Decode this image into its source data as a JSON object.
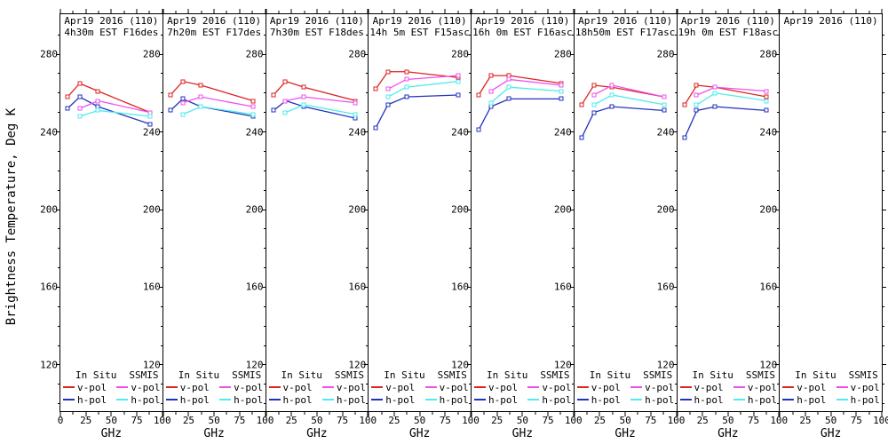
{
  "figure": {
    "ylabel": "Brightness Temperature, Deg K",
    "xlabel": "GHz",
    "background": "#ffffff"
  },
  "axes": {
    "x_ticks": [
      0,
      25,
      50,
      75,
      100
    ],
    "x_minor_ticks": [
      12.5,
      37.5,
      62.5,
      87.5
    ],
    "y_ticks": [
      280,
      240,
      200,
      160,
      120
    ],
    "y_minor_step": 10,
    "x_range": [
      0,
      100
    ],
    "y_range": [
      96.2,
      300.6
    ],
    "grid": false
  },
  "legend": {
    "in_situ_label": "In Situ",
    "ssmis_label": "SSMIS",
    "v_pol_label": "v-pol",
    "h_pol_label": "h-pol",
    "position": "bottom-inside-each-panel"
  },
  "colors": {
    "in_situ_v_pol": "#dd2222",
    "in_situ_h_pol": "#2233bb",
    "ssmis_v_pol": "#ee50ee",
    "ssmis_h_pol": "#50ebeb",
    "axis": "#000000"
  },
  "chart_data": [
    {
      "type": "line",
      "title": "Apr19 2016 (110)",
      "subtitle": "4h30m EST F16des",
      "series": [
        {
          "name": "In Situ v-pol",
          "color": "in_situ_v_pol",
          "x": [
            7,
            19,
            37,
            88
          ],
          "y": [
            258,
            265,
            261,
            250
          ]
        },
        {
          "name": "In Situ h-pol",
          "color": "in_situ_h_pol",
          "x": [
            7,
            19,
            37,
            88
          ],
          "y": [
            252,
            258,
            253,
            244
          ]
        },
        {
          "name": "SSMIS v-pol",
          "color": "ssmis_v_pol",
          "x": [
            19,
            37,
            88
          ],
          "y": [
            252,
            256,
            250
          ]
        },
        {
          "name": "SSMIS h-pol",
          "color": "ssmis_h_pol",
          "x": [
            19,
            37,
            88
          ],
          "y": [
            248,
            251,
            248
          ]
        }
      ]
    },
    {
      "type": "line",
      "title": "Apr19 2016 (110)",
      "subtitle": "7h20m EST F17des",
      "series": [
        {
          "name": "In Situ v-pol",
          "color": "in_situ_v_pol",
          "x": [
            7,
            19,
            37,
            88
          ],
          "y": [
            259,
            266,
            264,
            256
          ]
        },
        {
          "name": "In Situ h-pol",
          "color": "in_situ_h_pol",
          "x": [
            7,
            19,
            37,
            88
          ],
          "y": [
            251,
            257,
            253,
            248
          ]
        },
        {
          "name": "SSMIS v-pol",
          "color": "ssmis_v_pol",
          "x": [
            19,
            37,
            88
          ],
          "y": [
            255,
            258,
            253
          ]
        },
        {
          "name": "SSMIS h-pol",
          "color": "ssmis_h_pol",
          "x": [
            19,
            37,
            88
          ],
          "y": [
            249,
            253,
            249
          ]
        }
      ]
    },
    {
      "type": "line",
      "title": "Apr19 2016 (110)",
      "subtitle": "7h30m EST F18des",
      "series": [
        {
          "name": "In Situ v-pol",
          "color": "in_situ_v_pol",
          "x": [
            7,
            19,
            37,
            88
          ],
          "y": [
            259,
            266,
            263,
            256
          ]
        },
        {
          "name": "In Situ h-pol",
          "color": "in_situ_h_pol",
          "x": [
            7,
            19,
            37,
            88
          ],
          "y": [
            251,
            256,
            253,
            247
          ]
        },
        {
          "name": "SSMIS v-pol",
          "color": "ssmis_v_pol",
          "x": [
            19,
            37,
            88
          ],
          "y": [
            256,
            258,
            255
          ]
        },
        {
          "name": "SSMIS h-pol",
          "color": "ssmis_h_pol",
          "x": [
            19,
            37,
            88
          ],
          "y": [
            250,
            254,
            249
          ]
        }
      ]
    },
    {
      "type": "line",
      "title": "Apr19 2016 (110)",
      "subtitle": "14h 5m EST F15asc",
      "series": [
        {
          "name": "In Situ v-pol",
          "color": "in_situ_v_pol",
          "x": [
            7,
            19,
            37,
            88
          ],
          "y": [
            262,
            271,
            271,
            268
          ]
        },
        {
          "name": "In Situ h-pol",
          "color": "in_situ_h_pol",
          "x": [
            7,
            19,
            37,
            88
          ],
          "y": [
            242,
            254,
            258,
            259
          ]
        },
        {
          "name": "SSMIS v-pol",
          "color": "ssmis_v_pol",
          "x": [
            19,
            37,
            88
          ],
          "y": [
            262,
            267,
            269
          ]
        },
        {
          "name": "SSMIS h-pol",
          "color": "ssmis_h_pol",
          "x": [
            19,
            37,
            88
          ],
          "y": [
            258,
            263,
            266
          ]
        }
      ]
    },
    {
      "type": "line",
      "title": "Apr19 2016 (110)",
      "subtitle": "16h 0m EST F16asc",
      "series": [
        {
          "name": "In Situ v-pol",
          "color": "in_situ_v_pol",
          "x": [
            7,
            19,
            37,
            88
          ],
          "y": [
            259,
            269,
            269,
            265
          ]
        },
        {
          "name": "In Situ h-pol",
          "color": "in_situ_h_pol",
          "x": [
            7,
            19,
            37,
            88
          ],
          "y": [
            241,
            253,
            257,
            257
          ]
        },
        {
          "name": "SSMIS v-pol",
          "color": "ssmis_v_pol",
          "x": [
            19,
            37,
            88
          ],
          "y": [
            261,
            267,
            264
          ]
        },
        {
          "name": "SSMIS h-pol",
          "color": "ssmis_h_pol",
          "x": [
            19,
            37,
            88
          ],
          "y": [
            255,
            263,
            261
          ]
        }
      ]
    },
    {
      "type": "line",
      "title": "Apr19 2016 (110)",
      "subtitle": "18h50m EST F17asc",
      "series": [
        {
          "name": "In Situ v-pol",
          "color": "in_situ_v_pol",
          "x": [
            7,
            19,
            37,
            88
          ],
          "y": [
            254,
            264,
            263,
            258
          ]
        },
        {
          "name": "In Situ h-pol",
          "color": "in_situ_h_pol",
          "x": [
            7,
            19,
            37,
            88
          ],
          "y": [
            237,
            250,
            253,
            251
          ]
        },
        {
          "name": "SSMIS v-pol",
          "color": "ssmis_v_pol",
          "x": [
            19,
            37,
            88
          ],
          "y": [
            259,
            264,
            258
          ]
        },
        {
          "name": "SSMIS h-pol",
          "color": "ssmis_h_pol",
          "x": [
            19,
            37,
            88
          ],
          "y": [
            254,
            259,
            254
          ]
        }
      ]
    },
    {
      "type": "line",
      "title": "Apr19 2016 (110)",
      "subtitle": "19h 0m EST F18asc",
      "series": [
        {
          "name": "In Situ v-pol",
          "color": "in_situ_v_pol",
          "x": [
            7,
            19,
            37,
            88
          ],
          "y": [
            254,
            264,
            263,
            258
          ]
        },
        {
          "name": "In Situ h-pol",
          "color": "in_situ_h_pol",
          "x": [
            7,
            19,
            37,
            88
          ],
          "y": [
            237,
            251,
            253,
            251
          ]
        },
        {
          "name": "SSMIS v-pol",
          "color": "ssmis_v_pol",
          "x": [
            19,
            37,
            88
          ],
          "y": [
            259,
            263,
            261
          ]
        },
        {
          "name": "SSMIS h-pol",
          "color": "ssmis_h_pol",
          "x": [
            19,
            37,
            88
          ],
          "y": [
            254,
            260,
            256
          ]
        }
      ]
    },
    {
      "type": "line",
      "title": "Apr19 2016 (110)",
      "subtitle": "",
      "series": []
    }
  ]
}
